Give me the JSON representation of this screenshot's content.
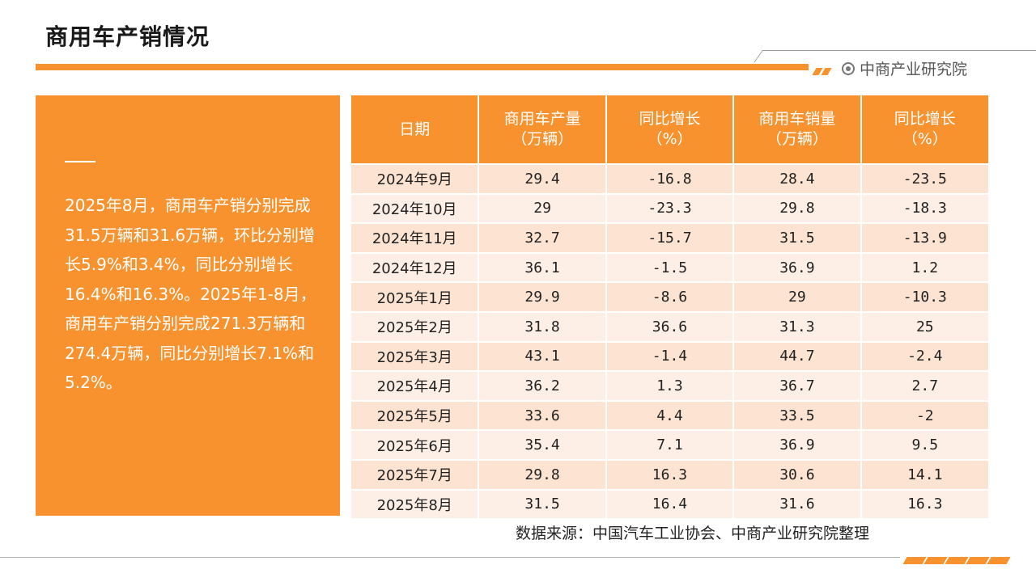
{
  "header": {
    "title": "商用车产销情况",
    "brand": "中商产业研究院"
  },
  "summary": {
    "text": "2025年8月，商用车产销分别完成31.5万辆和31.6万辆，环比分别增长5.9%和3.4%，同比分别增长16.4%和16.3%。2025年1-8月，商用车产销分别完成271.3万辆和274.4万辆，同比分别增长7.1%和5.2%。"
  },
  "table": {
    "columns": [
      {
        "line1": "日期",
        "line2": ""
      },
      {
        "line1": "商用车产量",
        "line2": "（万辆）"
      },
      {
        "line1": "同比增长",
        "line2": "（%）"
      },
      {
        "line1": "商用车销量",
        "line2": "（万辆）"
      },
      {
        "line1": "同比增长",
        "line2": "（%）"
      }
    ],
    "rows": [
      [
        "2024年9月",
        "29.4",
        "-16.8",
        "28.4",
        "-23.5"
      ],
      [
        "2024年10月",
        "29",
        "-23.3",
        "29.8",
        "-18.3"
      ],
      [
        "2024年11月",
        "32.7",
        "-15.7",
        "31.5",
        "-13.9"
      ],
      [
        "2024年12月",
        "36.1",
        "-1.5",
        "36.9",
        "1.2"
      ],
      [
        "2025年1月",
        "29.9",
        "-8.6",
        "29",
        "-10.3"
      ],
      [
        "2025年2月",
        "31.8",
        "36.6",
        "31.3",
        "25"
      ],
      [
        "2025年3月",
        "43.1",
        "-1.4",
        "44.7",
        "-2.4"
      ],
      [
        "2025年4月",
        "36.2",
        "1.3",
        "36.7",
        "2.7"
      ],
      [
        "2025年5月",
        "33.6",
        "4.4",
        "33.5",
        "-2"
      ],
      [
        "2025年6月",
        "35.4",
        "7.1",
        "36.9",
        "9.5"
      ],
      [
        "2025年7月",
        "29.8",
        "16.3",
        "30.6",
        "14.1"
      ],
      [
        "2025年8月",
        "31.5",
        "16.4",
        "31.6",
        "16.3"
      ]
    ]
  },
  "source": "数据来源：中国汽车工业协会、中商产业研究院整理",
  "colors": {
    "accent": "#f7922e",
    "row_odd": "#fde3d2",
    "row_even": "#feefe6"
  }
}
